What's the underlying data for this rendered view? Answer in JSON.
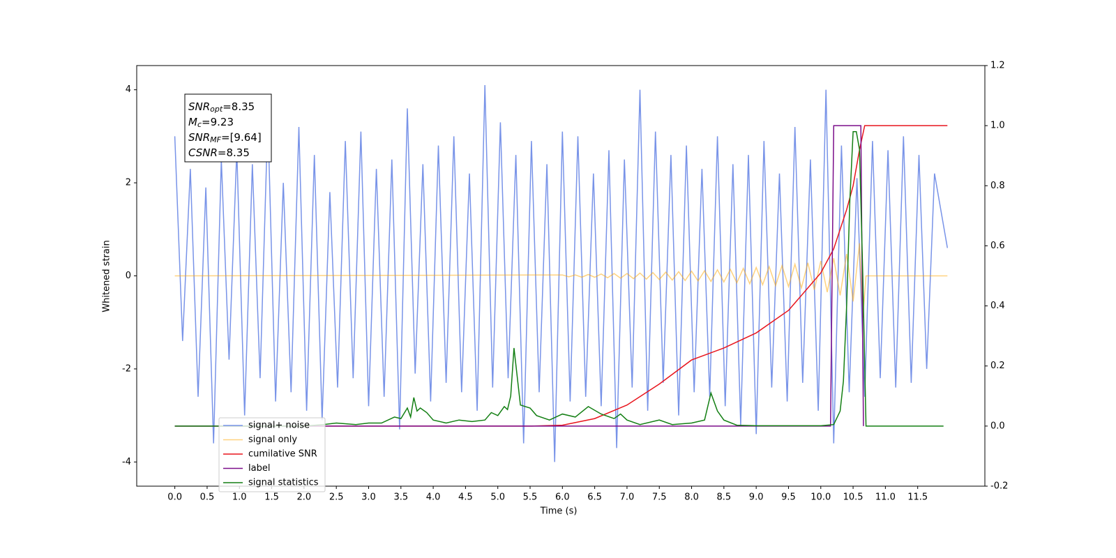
{
  "chart_data": {
    "type": "line",
    "xlabel": "Time (s)",
    "ylabel": "Whitened strain",
    "xlim": [
      -0.59,
      12.54
    ],
    "ylim": [
      -4.52,
      4.52
    ],
    "y2lim": [
      -0.2,
      1.2
    ],
    "xticks": [
      {
        "value": 0,
        "label": "0.0"
      },
      0.5,
      {
        "value": 1,
        "label": "1.0"
      },
      1.5,
      {
        "value": 2,
        "label": "2.0"
      },
      2.5,
      {
        "value": 3,
        "label": "3.0"
      },
      3.5,
      {
        "value": 4,
        "label": "4.0"
      },
      4.5,
      {
        "value": 5,
        "label": "5.0"
      },
      5.5,
      {
        "value": 6,
        "label": "6.0"
      },
      6.5,
      {
        "value": 7,
        "label": "7.0"
      },
      7.5,
      {
        "value": 8,
        "label": "8.0"
      },
      8.5,
      {
        "value": 9,
        "label": "9.0"
      },
      9.5,
      {
        "value": 10,
        "label": "10.0"
      },
      10.5,
      {
        "value": 11,
        "label": "11.0"
      },
      11.5
    ],
    "yticks": [
      -4,
      -2,
      0,
      2,
      4
    ],
    "y2ticks": [
      -0.2,
      {
        "value": 0,
        "label": "0.0"
      },
      0.2,
      0.4,
      0.6,
      0.8,
      {
        "value": 1,
        "label": "1.0"
      },
      1.2
    ],
    "legend": "lower left",
    "annotation": [
      {
        "text": "SNR",
        "sub": "opt",
        "value": "=8.35"
      },
      {
        "text": "M",
        "sub": "c",
        "value": "=9.23"
      },
      {
        "text": "SNR",
        "sub": "MF",
        "value": "=[9.64]"
      },
      {
        "text": "CSNR",
        "value": "=8.35"
      }
    ],
    "series": [
      {
        "name": "signal+ noise",
        "color": "#7893e8",
        "x": [
          0,
          0.12,
          0.24,
          0.36,
          0.48,
          0.6,
          0.72,
          0.84,
          0.96,
          1.08,
          1.2,
          1.32,
          1.44,
          1.56,
          1.68,
          1.8,
          1.92,
          2.04,
          2.16,
          2.28,
          2.4,
          2.52,
          2.64,
          2.76,
          2.88,
          3.0,
          3.12,
          3.24,
          3.36,
          3.48,
          3.6,
          3.72,
          3.84,
          3.96,
          4.08,
          4.2,
          4.32,
          4.44,
          4.56,
          4.68,
          4.8,
          4.92,
          5.04,
          5.16,
          5.28,
          5.4,
          5.52,
          5.64,
          5.76,
          5.88,
          6.0,
          6.12,
          6.24,
          6.36,
          6.48,
          6.6,
          6.72,
          6.84,
          6.96,
          7.08,
          7.2,
          7.32,
          7.44,
          7.56,
          7.68,
          7.8,
          7.92,
          8.04,
          8.16,
          8.28,
          8.4,
          8.52,
          8.64,
          8.76,
          8.88,
          9.0,
          9.12,
          9.24,
          9.36,
          9.48,
          9.6,
          9.72,
          9.84,
          9.96,
          10.08,
          10.2,
          10.32,
          10.44,
          10.56,
          10.68,
          10.8,
          10.92,
          11.04,
          11.16,
          11.28,
          11.4,
          11.52,
          11.64,
          11.76,
          11.96
        ],
        "values": [
          3.0,
          -1.4,
          2.3,
          -2.6,
          1.9,
          -3.6,
          2.5,
          -1.8,
          2.7,
          -3.0,
          2.4,
          -2.2,
          3.4,
          -2.7,
          2.0,
          -2.5,
          3.2,
          -2.9,
          2.6,
          -3.1,
          1.8,
          -2.4,
          2.9,
          -2.2,
          3.1,
          -2.8,
          2.3,
          -2.6,
          2.5,
          -3.3,
          3.6,
          -2.1,
          2.4,
          -2.7,
          2.8,
          -2.3,
          3.0,
          -2.5,
          2.2,
          -2.9,
          4.1,
          -2.4,
          3.3,
          -2.2,
          2.6,
          -3.6,
          2.9,
          -2.5,
          2.4,
          -4.0,
          3.1,
          -2.7,
          3.0,
          -2.6,
          2.2,
          -2.8,
          2.7,
          -3.7,
          2.5,
          -2.4,
          4.0,
          -2.9,
          3.1,
          -2.3,
          2.6,
          -3.0,
          2.8,
          -2.5,
          2.3,
          -2.6,
          3.0,
          -2.8,
          2.4,
          -3.2,
          2.6,
          -3.4,
          2.9,
          -2.4,
          2.2,
          -2.7,
          3.2,
          -2.3,
          2.5,
          -2.9,
          4.0,
          -3.6,
          2.8,
          -2.5,
          2.1,
          -2.6,
          2.9,
          -2.2,
          2.7,
          -2.4,
          3.0,
          -2.3,
          2.6,
          -2.0,
          2.2,
          0.6
        ]
      },
      {
        "name": "signal only",
        "color": "rgba(255,165,0,0.5)",
        "x": [
          0,
          6.0,
          6.1,
          6.2,
          6.3,
          6.4,
          6.5,
          6.6,
          6.7,
          6.8,
          6.9,
          7.0,
          7.1,
          7.2,
          7.3,
          7.4,
          7.5,
          7.6,
          7.7,
          7.8,
          7.9,
          8.0,
          8.1,
          8.2,
          8.3,
          8.4,
          8.5,
          8.6,
          8.7,
          8.8,
          8.9,
          9.0,
          9.1,
          9.2,
          9.3,
          9.4,
          9.5,
          9.6,
          9.7,
          9.8,
          9.9,
          10.0,
          10.1,
          10.2,
          10.3,
          10.4,
          10.5,
          10.6,
          10.65,
          10.7,
          11.96
        ],
        "values": [
          0,
          0.02,
          -0.02,
          0.02,
          -0.03,
          0.03,
          -0.03,
          0.04,
          -0.04,
          0.05,
          -0.05,
          0.05,
          -0.06,
          0.06,
          -0.07,
          0.07,
          -0.08,
          0.08,
          -0.09,
          0.09,
          -0.1,
          0.1,
          -0.11,
          0.11,
          -0.12,
          0.13,
          -0.13,
          0.14,
          -0.15,
          0.16,
          -0.17,
          0.18,
          -0.19,
          0.2,
          -0.21,
          0.22,
          -0.23,
          0.25,
          -0.26,
          0.28,
          -0.3,
          0.32,
          -0.35,
          0.38,
          -0.42,
          0.47,
          -0.55,
          0.7,
          -0.9,
          0,
          0
        ]
      },
      {
        "name": "cumilative SNR",
        "color": "#e8141c",
        "axis": "y2",
        "x": [
          0,
          5.5,
          6.0,
          6.5,
          7.0,
          7.5,
          8.0,
          8.5,
          9.0,
          9.5,
          10.0,
          10.2,
          10.4,
          10.5,
          10.6,
          10.68,
          10.7,
          11.96
        ],
        "values": [
          0,
          0,
          0.003,
          0.025,
          0.07,
          0.14,
          0.22,
          0.26,
          0.31,
          0.385,
          0.51,
          0.59,
          0.72,
          0.8,
          0.92,
          1.0,
          1.0,
          1.0
        ]
      },
      {
        "name": "label",
        "color": "#7b0d8a",
        "axis": "y2",
        "x": [
          0,
          10.15,
          10.2,
          10.62,
          10.66
        ],
        "values": [
          0,
          0,
          1,
          1,
          0
        ]
      },
      {
        "name": "signal statistics",
        "color": "#137f13",
        "axis": "y2",
        "x": [
          0,
          2.0,
          2.3,
          2.5,
          2.8,
          3.0,
          3.2,
          3.4,
          3.5,
          3.6,
          3.65,
          3.7,
          3.75,
          3.8,
          3.9,
          4.0,
          4.2,
          4.4,
          4.6,
          4.8,
          4.9,
          5.0,
          5.1,
          5.15,
          5.2,
          5.25,
          5.35,
          5.5,
          5.6,
          5.8,
          6.0,
          6.2,
          6.4,
          6.6,
          6.8,
          6.9,
          7.0,
          7.2,
          7.5,
          7.7,
          8.0,
          8.2,
          8.3,
          8.4,
          8.5,
          8.7,
          9.0,
          10.0,
          10.2,
          10.3,
          10.35,
          10.4,
          10.45,
          10.5,
          10.55,
          10.6,
          10.65,
          10.7,
          11.9
        ],
        "values": [
          0,
          0,
          0.005,
          0.01,
          0.005,
          0.01,
          0.01,
          0.03,
          0.025,
          0.06,
          0.03,
          0.095,
          0.05,
          0.06,
          0.045,
          0.02,
          0.01,
          0.02,
          0.015,
          0.02,
          0.045,
          0.035,
          0.065,
          0.055,
          0.1,
          0.26,
          0.07,
          0.06,
          0.035,
          0.02,
          0.04,
          0.03,
          0.065,
          0.04,
          0.025,
          0.04,
          0.02,
          0.005,
          0.02,
          0.005,
          0.01,
          0.02,
          0.11,
          0.05,
          0.02,
          0.003,
          0.001,
          0.001,
          0.005,
          0.05,
          0.15,
          0.4,
          0.75,
          0.98,
          0.98,
          0.92,
          0.5,
          0,
          0
        ]
      }
    ]
  }
}
